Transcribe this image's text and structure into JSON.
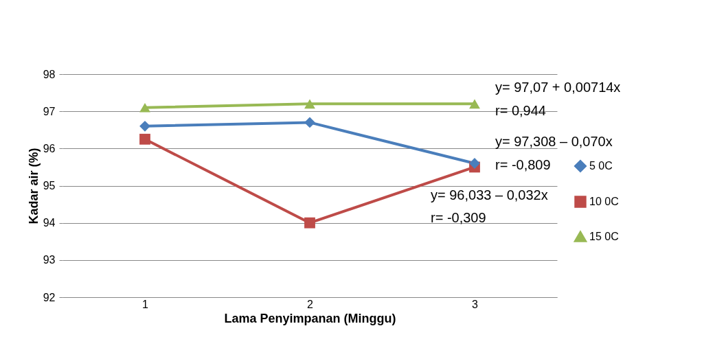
{
  "chart_data": {
    "type": "line",
    "xlabel": "Lama Penyimpanan (Minggu)",
    "ylabel": "Kadar air (%)",
    "categories": [
      "1",
      "2",
      "3"
    ],
    "series": [
      {
        "name": "5 0C",
        "color": "#4a7ebb",
        "marker": "diamond",
        "values": [
          96.6,
          96.7,
          95.6
        ]
      },
      {
        "name": "10 0C",
        "color": "#be4b48",
        "marker": "square",
        "values": [
          96.25,
          94.0,
          95.5
        ]
      },
      {
        "name": "15 0C",
        "color": "#98b954",
        "marker": "triangle",
        "values": [
          97.1,
          97.2,
          97.2
        ]
      }
    ],
    "ylim": [
      92,
      98
    ],
    "yticks": [
      92,
      93,
      94,
      95,
      96,
      97,
      98
    ],
    "grid": "y",
    "legend": "right",
    "annotations": [
      "y= 97,07 + 0,00714x",
      "r= 0,944",
      "y= 97,308 – 0,070x",
      "r= -0,809",
      "y= 96,033 – 0,032x",
      "r= -0,309"
    ]
  }
}
